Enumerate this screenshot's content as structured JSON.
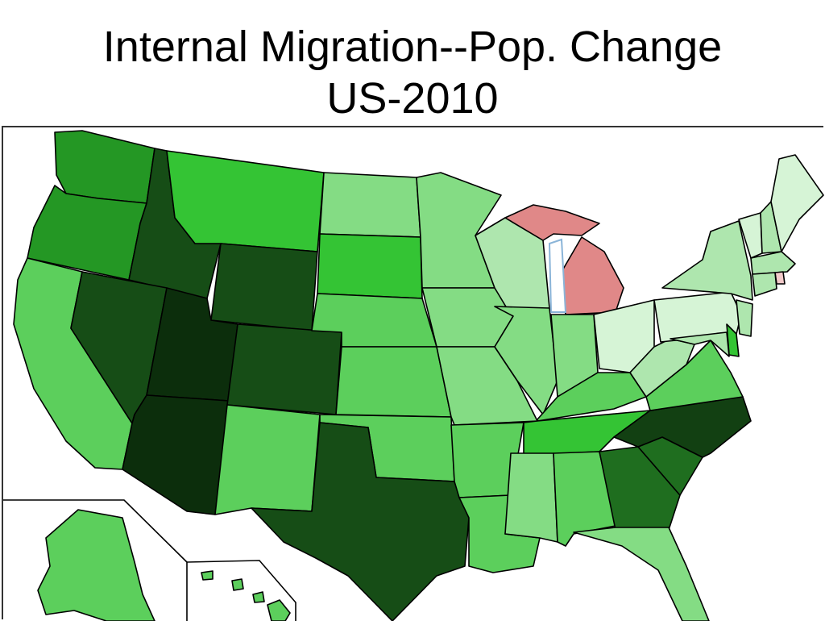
{
  "slide": {
    "title_line1": "Internal Migration--Pop. Change",
    "title_line2": "US-2010"
  },
  "colors": {
    "gain_darkest": "#0c2e0c",
    "gain_very_dark": "#124012",
    "gain_dark": "#164d16",
    "gain_mid_dark": "#1f6e1f",
    "gain_mid": "#249724",
    "gain_bright": "#34c434",
    "gain_light": "#5ccf5c",
    "gain_lighter": "#84dc84",
    "gain_pale": "#aee6ae",
    "gain_palest": "#d6f4d6",
    "loss": "#e08888",
    "loss_light": "#f3caca",
    "water_outline": "#8ab4d8",
    "border": "#000000"
  },
  "map": {
    "states": [
      {
        "name": "Washington",
        "shade": "gain_mid"
      },
      {
        "name": "Oregon",
        "shade": "gain_mid"
      },
      {
        "name": "California",
        "shade": "gain_light"
      },
      {
        "name": "Idaho",
        "shade": "gain_dark"
      },
      {
        "name": "Nevada",
        "shade": "gain_dark"
      },
      {
        "name": "Montana",
        "shade": "gain_bright"
      },
      {
        "name": "Wyoming",
        "shade": "gain_dark"
      },
      {
        "name": "Utah",
        "shade": "gain_darkest"
      },
      {
        "name": "Arizona",
        "shade": "gain_darkest"
      },
      {
        "name": "Colorado",
        "shade": "gain_dark"
      },
      {
        "name": "New Mexico",
        "shade": "gain_light"
      },
      {
        "name": "North Dakota",
        "shade": "gain_lighter"
      },
      {
        "name": "South Dakota",
        "shade": "gain_bright"
      },
      {
        "name": "Nebraska",
        "shade": "gain_light"
      },
      {
        "name": "Kansas",
        "shade": "gain_light"
      },
      {
        "name": "Oklahoma",
        "shade": "gain_light"
      },
      {
        "name": "Texas",
        "shade": "gain_dark"
      },
      {
        "name": "Minnesota",
        "shade": "gain_lighter"
      },
      {
        "name": "Iowa",
        "shade": "gain_lighter"
      },
      {
        "name": "Missouri",
        "shade": "gain_lighter"
      },
      {
        "name": "Arkansas",
        "shade": "gain_light"
      },
      {
        "name": "Louisiana",
        "shade": "gain_light"
      },
      {
        "name": "Wisconsin",
        "shade": "gain_pale"
      },
      {
        "name": "Illinois",
        "shade": "gain_lighter"
      },
      {
        "name": "Michigan",
        "shade": "loss"
      },
      {
        "name": "Indiana",
        "shade": "gain_lighter"
      },
      {
        "name": "Ohio",
        "shade": "gain_palest"
      },
      {
        "name": "Kentucky",
        "shade": "gain_light"
      },
      {
        "name": "Tennessee",
        "shade": "gain_bright"
      },
      {
        "name": "Mississippi",
        "shade": "gain_lighter"
      },
      {
        "name": "Alabama",
        "shade": "gain_light"
      },
      {
        "name": "Georgia",
        "shade": "gain_mid_dark"
      },
      {
        "name": "Florida",
        "shade": "gain_lighter"
      },
      {
        "name": "South Carolina",
        "shade": "gain_mid_dark"
      },
      {
        "name": "North Carolina",
        "shade": "gain_very_dark"
      },
      {
        "name": "Virginia",
        "shade": "gain_light"
      },
      {
        "name": "West Virginia",
        "shade": "gain_pale"
      },
      {
        "name": "Pennsylvania",
        "shade": "gain_palest"
      },
      {
        "name": "New York",
        "shade": "gain_pale"
      },
      {
        "name": "Vermont",
        "shade": "gain_palest"
      },
      {
        "name": "New Hampshire",
        "shade": "gain_pale"
      },
      {
        "name": "Maine",
        "shade": "gain_palest"
      },
      {
        "name": "Massachusetts",
        "shade": "gain_pale"
      },
      {
        "name": "Rhode Island",
        "shade": "loss_light"
      },
      {
        "name": "Connecticut",
        "shade": "gain_pale"
      },
      {
        "name": "New Jersey",
        "shade": "gain_pale"
      },
      {
        "name": "Delaware",
        "shade": "gain_bright"
      },
      {
        "name": "Maryland",
        "shade": "gain_pale"
      },
      {
        "name": "Alaska",
        "shade": "gain_light"
      },
      {
        "name": "Hawaii",
        "shade": "gain_light"
      }
    ]
  }
}
